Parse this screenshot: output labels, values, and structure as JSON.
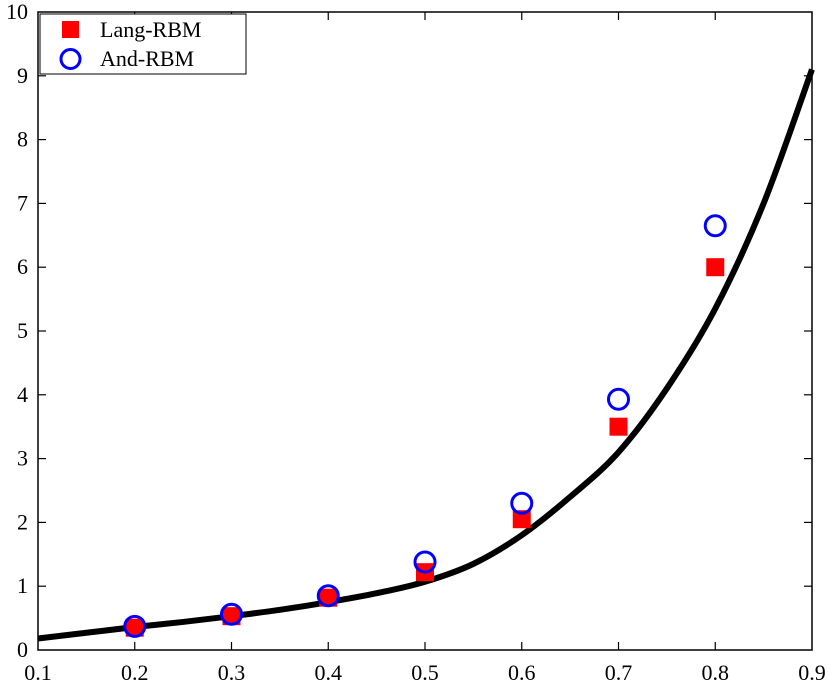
{
  "chart_data": {
    "type": "scatter",
    "xlim": [
      0.1,
      0.9
    ],
    "ylim": [
      0,
      10
    ],
    "x_ticks": [
      "0.1",
      "0.2",
      "0.3",
      "0.4",
      "0.5",
      "0.6",
      "0.7",
      "0.8",
      "0.9"
    ],
    "y_ticks": [
      "0",
      "1",
      "2",
      "3",
      "4",
      "5",
      "6",
      "7",
      "8",
      "9",
      "10"
    ],
    "grid": false,
    "legend_position": "top-left",
    "series": [
      {
        "name": "Lang-RBM",
        "marker": "filled-square",
        "color": "#ff0000",
        "x": [
          0.2,
          0.3,
          0.4,
          0.5,
          0.6,
          0.7,
          0.8
        ],
        "y": [
          0.35,
          0.53,
          0.82,
          1.22,
          2.05,
          3.5,
          6.0
        ]
      },
      {
        "name": "And-RBM",
        "marker": "open-circle",
        "color": "#0000ff",
        "x": [
          0.2,
          0.3,
          0.4,
          0.5,
          0.6,
          0.7,
          0.8
        ],
        "y": [
          0.37,
          0.56,
          0.85,
          1.38,
          2.3,
          3.93,
          6.65
        ]
      }
    ],
    "curve": {
      "color": "#000000",
      "x": [
        0.1,
        0.15,
        0.2,
        0.25,
        0.3,
        0.35,
        0.4,
        0.45,
        0.5,
        0.55,
        0.6,
        0.65,
        0.7,
        0.75,
        0.8,
        0.85,
        0.9
      ],
      "y": [
        0.18,
        0.27,
        0.36,
        0.44,
        0.53,
        0.63,
        0.75,
        0.89,
        1.07,
        1.35,
        1.8,
        2.4,
        3.1,
        4.1,
        5.35,
        7.0,
        9.1
      ]
    }
  }
}
